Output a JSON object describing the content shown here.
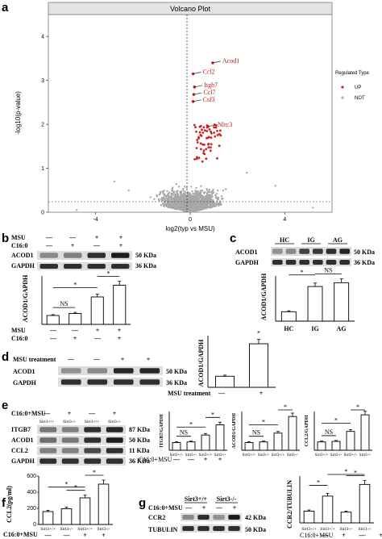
{
  "panel_a": {
    "letter": "a",
    "title": "Volcano Plot",
    "xlabel": "log2(typ vs MSU)",
    "ylabel": "-log10(p-value)",
    "legend_title": "Regulated Type",
    "legend_items": [
      {
        "label": "UP",
        "color": "#cc2222"
      },
      {
        "label": "NOT",
        "color": "#a8a8a8"
      }
    ],
    "genes": [
      {
        "name": "Acod1",
        "x": 0.95,
        "y": 3.4
      },
      {
        "name": "Ccl2",
        "x": 0.12,
        "y": 3.15
      },
      {
        "name": "Itgb7",
        "x": 0.18,
        "y": 2.85
      },
      {
        "name": "Ccl7",
        "x": 0.15,
        "y": 2.68
      },
      {
        "name": "Csf3",
        "x": 0.12,
        "y": 2.52
      },
      {
        "name": "Nlrc3",
        "x": 0.75,
        "y": 1.95
      }
    ]
  },
  "chart_data": [
    {
      "type": "scatter",
      "name": "volcano",
      "xlim": [
        -6,
        6
      ],
      "ylim": [
        0,
        4.5
      ],
      "xticks": [
        -4,
        0,
        4
      ],
      "yticks": [
        0,
        1,
        2,
        3,
        4
      ],
      "series": [
        {
          "name": "UP",
          "color": "#cc2222"
        },
        {
          "name": "NOT",
          "color": "#a8a8a8"
        }
      ]
    },
    {
      "type": "bar",
      "panel": "b",
      "ylabel": "ACOD1/GAPDH",
      "values": [
        0.22,
        0.27,
        0.68,
        0.97
      ]
    },
    {
      "type": "bar",
      "panel": "c",
      "ylabel": "ACOD1/GAPDH",
      "categories": [
        "HC",
        "IG",
        "AG"
      ],
      "values": [
        0.25,
        0.92,
        1.02
      ]
    },
    {
      "type": "bar",
      "panel": "d",
      "ylabel": "ACOD1/GAPDH",
      "values": [
        0.3,
        1.18
      ]
    },
    {
      "type": "bar",
      "panel": "e1",
      "ylabel": "ITGB7/GAPDH",
      "values": [
        0.28,
        0.3,
        0.55,
        0.92
      ]
    },
    {
      "type": "bar",
      "panel": "e2",
      "ylabel": "ACOD1/GAPDH",
      "values": [
        0.28,
        0.3,
        0.62,
        1.22
      ]
    },
    {
      "type": "bar",
      "panel": "e3",
      "ylabel": "CCL2/GAPDH",
      "values": [
        0.3,
        0.32,
        0.68,
        1.28
      ]
    },
    {
      "type": "bar",
      "panel": "f",
      "ylabel": "CCL2(pg/ml)",
      "values": [
        160,
        195,
        330,
        500
      ]
    },
    {
      "type": "bar",
      "panel": "g",
      "ylabel": "CCR2/TUBULIN",
      "values": [
        0.35,
        0.8,
        0.32,
        1.15
      ]
    }
  ],
  "panel_b": {
    "letter": "b",
    "row1_label": "MSU",
    "row1_signs": [
      "—",
      "—",
      "+",
      "+"
    ],
    "row2_label": "C16:0",
    "row2_signs": [
      "—",
      "+",
      "—",
      "+"
    ],
    "blots": [
      {
        "name": "ACOD1",
        "kda": "50 KDa"
      },
      {
        "name": "GAPDH",
        "kda": "36 KDa"
      }
    ],
    "ns": "NS",
    "star": "*"
  },
  "panel_c": {
    "letter": "c",
    "groups": [
      "HC",
      "IG",
      "AG"
    ],
    "blots": [
      {
        "name": "ACOD1",
        "kda": "50 KDa"
      },
      {
        "name": "GAPDH",
        "kda": "36 KDa"
      }
    ],
    "ns": "NS",
    "star": "*"
  },
  "panel_d": {
    "letter": "d",
    "row_label": "MSU treatment",
    "signs": [
      "—",
      "—",
      "+",
      "+"
    ],
    "blots": [
      {
        "name": "ACOD1",
        "kda": "50 KDa"
      },
      {
        "name": "GAPDH",
        "kda": "36 KDa"
      }
    ],
    "chart_label": "MSU  treatment",
    "chart_signs": [
      "—",
      "+"
    ],
    "star": "*"
  },
  "panel_e": {
    "letter": "e",
    "row1_label": "C16:0+MSU",
    "row1_signs": [
      "—",
      "+",
      "—",
      "+"
    ],
    "genotypes": [
      "Sirt3+/+",
      "Sirt3-/-",
      "Sirt3+/+",
      "Sirt3-/-"
    ],
    "blots": [
      {
        "name": "ITGB7",
        "kda": "87 KDa"
      },
      {
        "name": "ACOD1",
        "kda": "50 KDa"
      },
      {
        "name": "CCL2",
        "kda": "11 KDa"
      },
      {
        "name": "GAPDH",
        "kda": "36 KDa"
      }
    ],
    "chart_xlabel": "C16:0+MSU",
    "chart_signs": [
      "—",
      "—",
      "+",
      "+"
    ],
    "genotype_short": [
      "Sirt3+/+",
      "Sirt3-/-",
      "Sirt3+/+",
      "Sirt3-/-"
    ],
    "ns": "NS",
    "star": "*"
  },
  "panel_f": {
    "letter": "f",
    "xlabel": "C16:0+MSU",
    "signs": [
      "—",
      "—",
      "+",
      "+"
    ],
    "genotypes": [
      "Sirt3+/+",
      "Sirt3-/-",
      "Sirt3+/+",
      "Sirt3-/-"
    ],
    "yticks": [
      "0",
      "200",
      "400",
      "600"
    ],
    "star": "*"
  },
  "panel_g": {
    "letter": "g",
    "headers": [
      "Sirt3+/+",
      "Sirt3-/-"
    ],
    "row_label": "C16:0+MSU",
    "signs": [
      "—",
      "+",
      "—",
      "+"
    ],
    "blots": [
      {
        "name": "CCR2",
        "kda": "42 KDa"
      },
      {
        "name": "TUBULIN",
        "kda": "50 KDa"
      }
    ],
    "genotypes": [
      "Sirt3+/+",
      "Sirt3+/+",
      "Sirt3-/-",
      "Sirt3-/-"
    ],
    "chart_xlabel": "C16:0+MSU",
    "chart_signs": [
      "—",
      "+",
      "—",
      "+"
    ],
    "star": "*"
  }
}
